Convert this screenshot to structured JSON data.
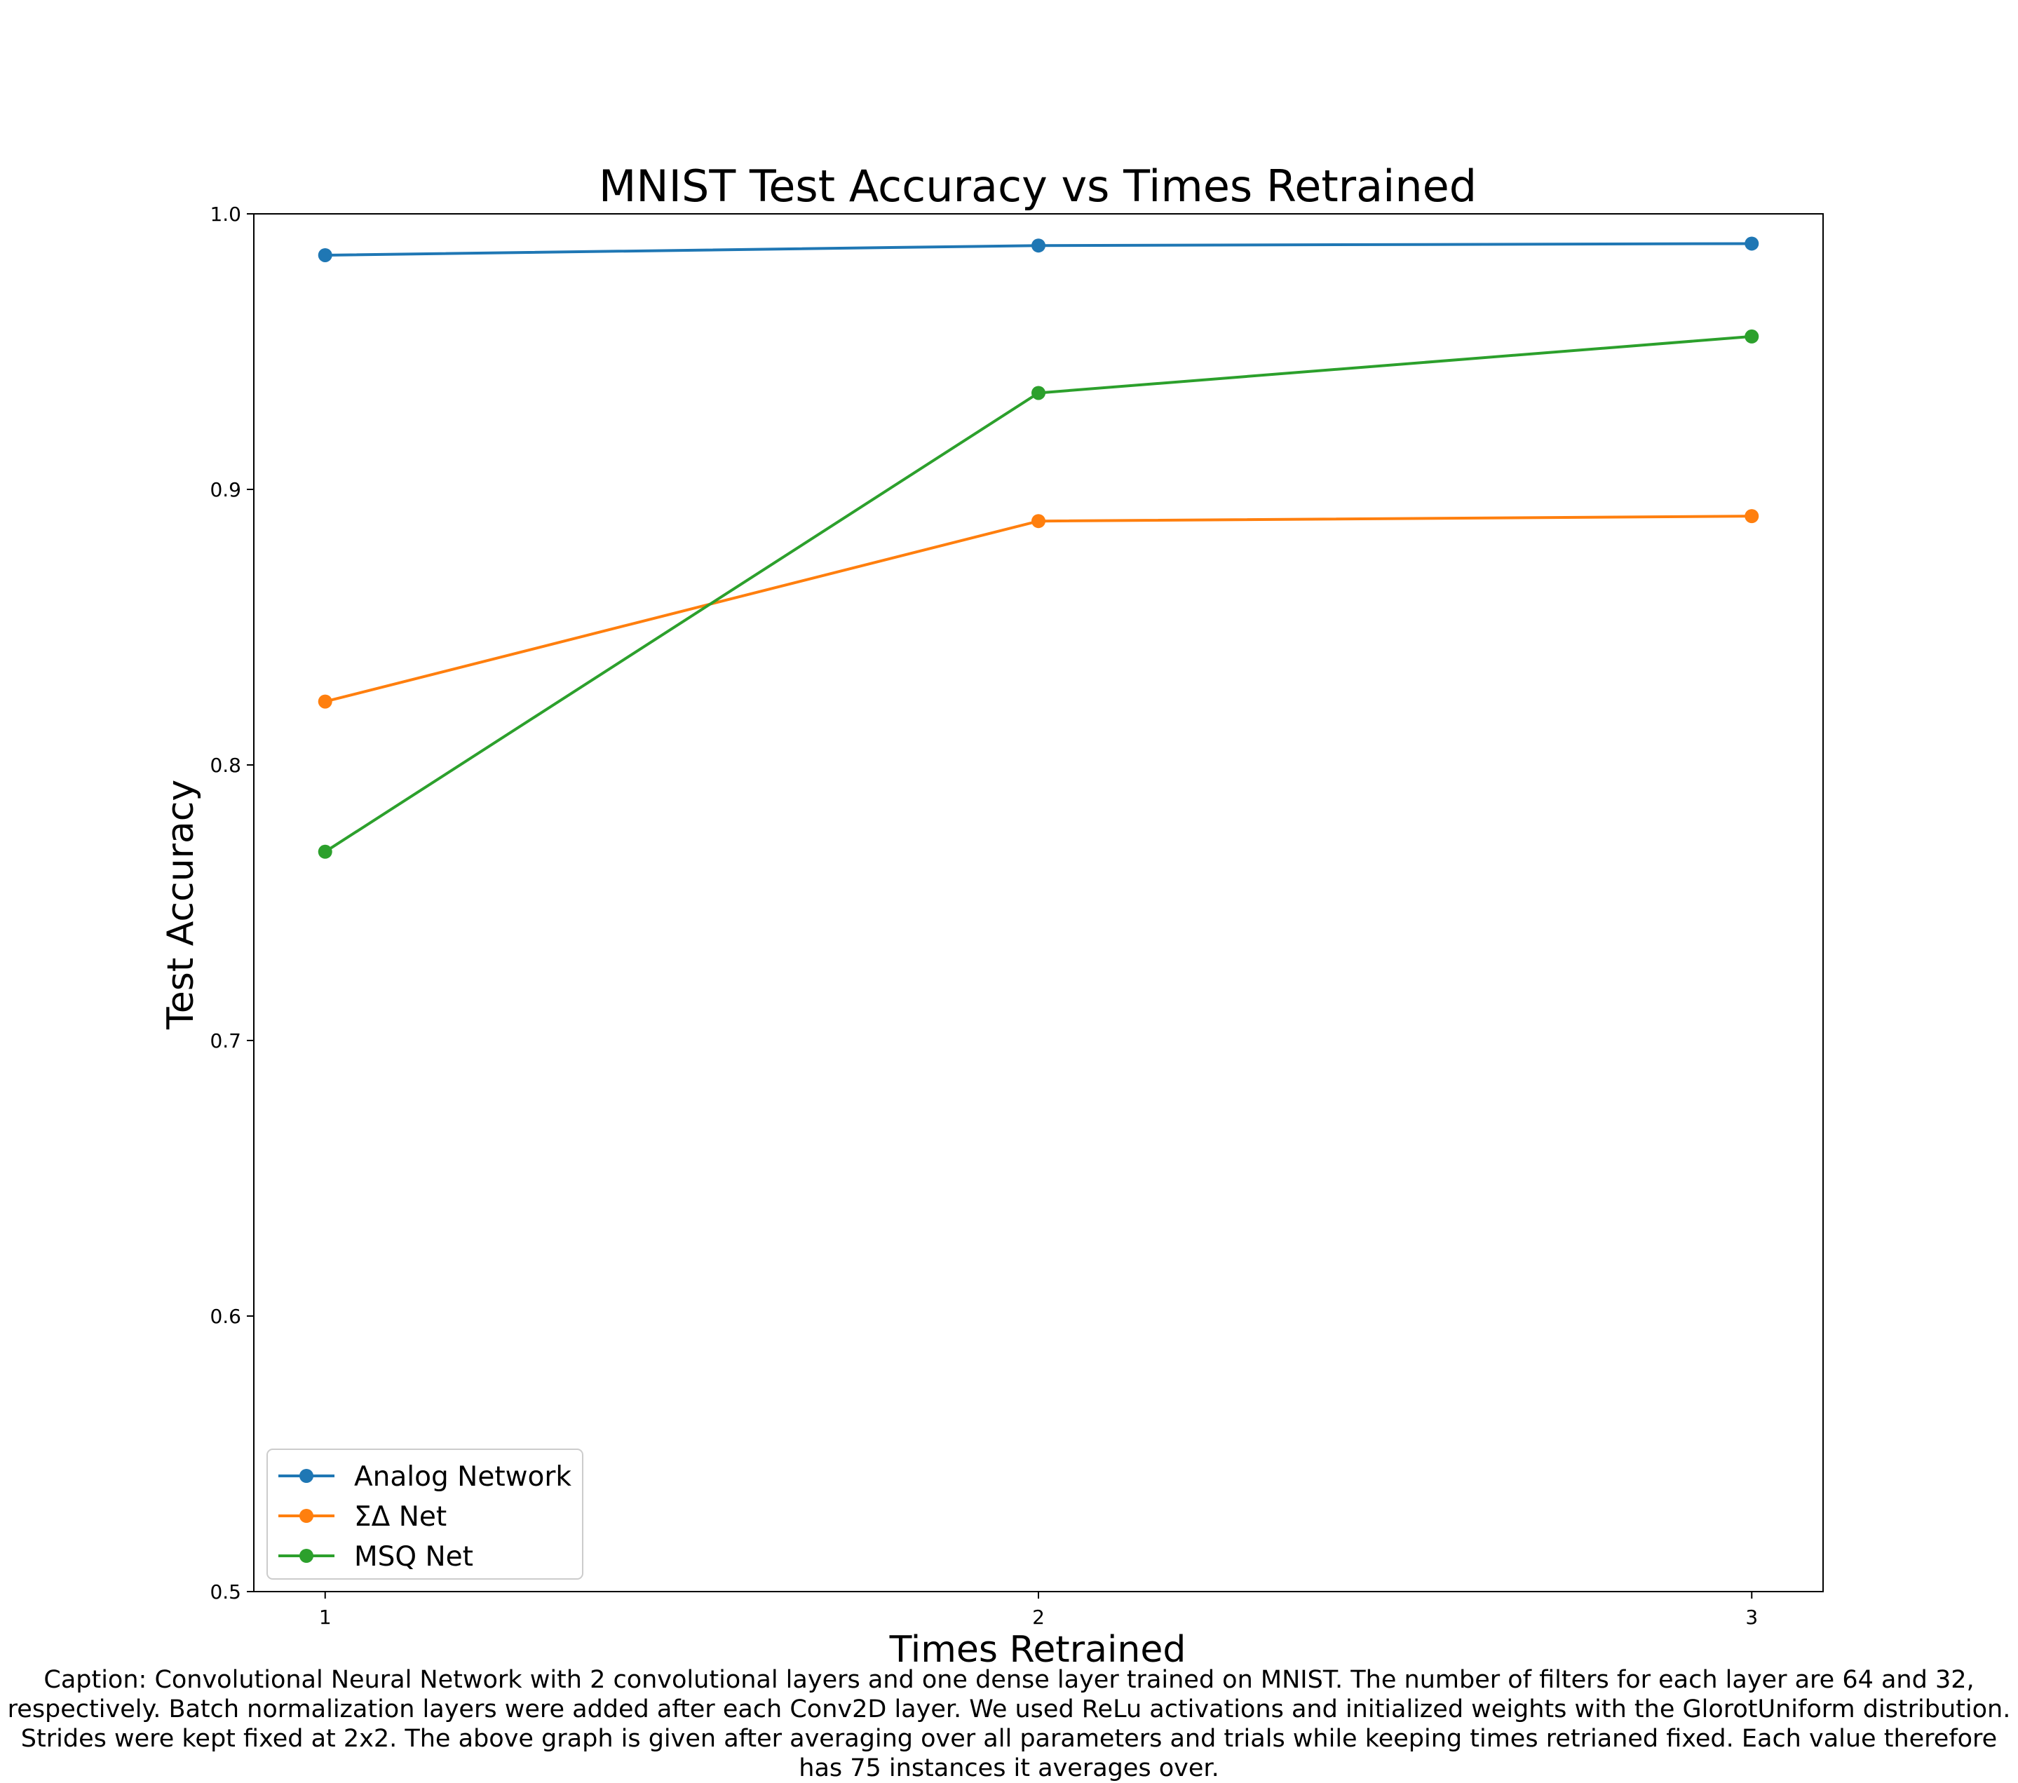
{
  "chart_data": {
    "type": "line",
    "title": "MNIST Test Accuracy vs Times Retrained",
    "xlabel": "Times Retrained",
    "ylabel": "Test Accuracy",
    "x": [
      1,
      2,
      3
    ],
    "xlim": [
      0.9,
      3.1
    ],
    "ylim": [
      0.5,
      1.0
    ],
    "xticks": [
      "1",
      "2",
      "3"
    ],
    "yticks": [
      "0.5",
      "0.6",
      "0.7",
      "0.8",
      "0.9",
      "1.0"
    ],
    "grid": false,
    "legend_position": "lower-left",
    "series": [
      {
        "name": "Analog Network",
        "color": "#1f77b4",
        "values": [
          0.985,
          0.9885,
          0.9892
        ]
      },
      {
        "name": "ΣΔ Net",
        "color": "#ff7f0e",
        "values": [
          0.823,
          0.8885,
          0.8903
        ]
      },
      {
        "name": "MSQ Net",
        "color": "#2ca02c",
        "values": [
          0.7685,
          0.935,
          0.9555
        ]
      }
    ]
  },
  "caption": "Caption: Convolutional Neural Network with 2 convolutional layers and one dense layer trained on MNIST. The number of filters for each layer are 64 and 32, respectively. Batch normalization layers were added after each Conv2D layer. We used ReLu activations and initialized weights with the GlorotUniform distribution. Strides were kept fixed at 2x2.  The above graph is given after averaging over all parameters and trials while keeping times retrianed fixed. Each value therefore has 75 instances it averages over."
}
